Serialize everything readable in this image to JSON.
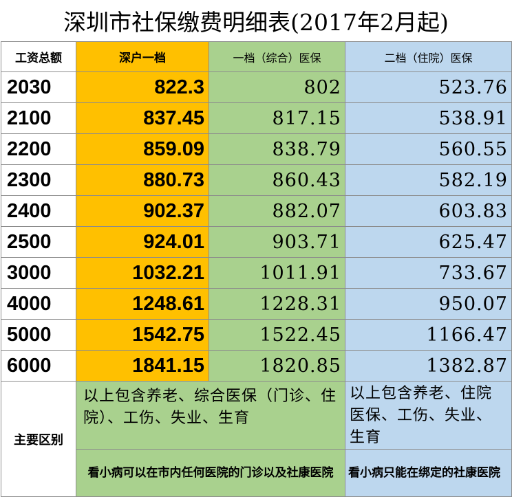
{
  "title": "深圳市社保缴费明细表(2017年2月起)",
  "headers": {
    "salary": "工资总额",
    "col1": "深户一档",
    "col2": "一档（综合）医保",
    "col3": "二档（住院）医保"
  },
  "rows": [
    {
      "salary": "2030",
      "c1": "822.3",
      "c2": "802",
      "c3": "523.76"
    },
    {
      "salary": "2100",
      "c1": "837.45",
      "c2": "817.15",
      "c3": "538.91"
    },
    {
      "salary": "2200",
      "c1": "859.09",
      "c2": "838.79",
      "c3": "560.55"
    },
    {
      "salary": "2300",
      "c1": "880.73",
      "c2": "860.43",
      "c3": "582.19"
    },
    {
      "salary": "2400",
      "c1": "902.37",
      "c2": "882.07",
      "c3": "603.83"
    },
    {
      "salary": "2500",
      "c1": "924.01",
      "c2": "903.71",
      "c3": "625.47"
    },
    {
      "salary": "3000",
      "c1": "1032.21",
      "c2": "1011.91",
      "c3": "733.67"
    },
    {
      "salary": "4000",
      "c1": "1248.61",
      "c2": "1228.31",
      "c3": "950.07"
    },
    {
      "salary": "5000",
      "c1": "1542.75",
      "c2": "1522.45",
      "c3": "1166.47"
    },
    {
      "salary": "6000",
      "c1": "1841.15",
      "c2": "1820.85",
      "c3": "1382.87"
    }
  ],
  "difference": {
    "label": "主要区别",
    "col_1_2": "以上包含养老、综合医保（门诊、住院）、工伤、失业、生育",
    "col3": "以上包含养老、住院医保、工伤、失业、生育"
  },
  "notes": {
    "col_1_2": "看小病可以在市内任何医院的门诊以及社康医院",
    "col3": "看小病只能在绑定的社康医院"
  },
  "colors": {
    "yellow": "#ffc000",
    "green": "#a9d18e",
    "blue": "#bdd7ee"
  }
}
